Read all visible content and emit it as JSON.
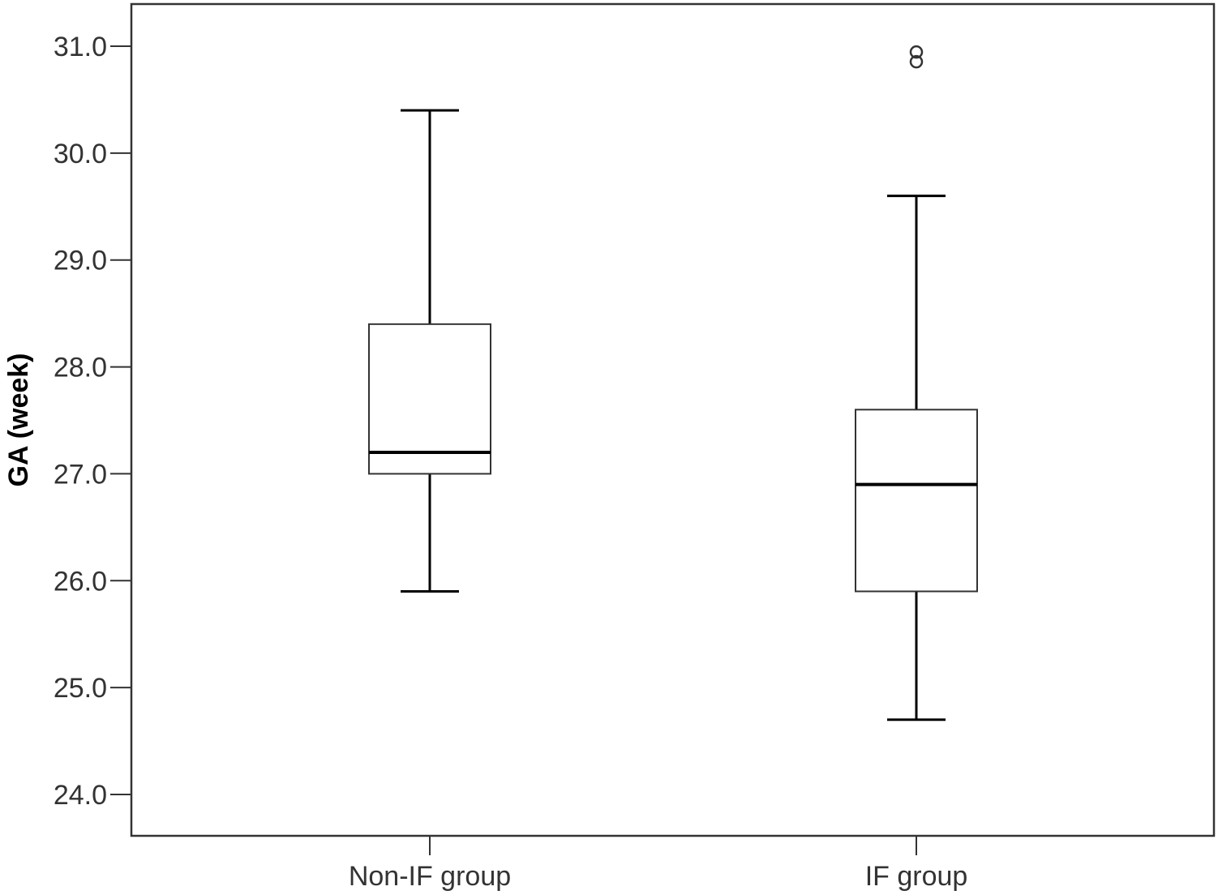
{
  "chart_data": {
    "type": "boxplot",
    "ylabel": "GA (week)",
    "xlabel": "",
    "ylim": [
      23.6,
      31.4
    ],
    "yticks": [
      "24.0",
      "25.0",
      "26.0",
      "27.0",
      "28.0",
      "29.0",
      "30.0",
      "31.0"
    ],
    "categories": [
      "Non-IF group",
      "IF group"
    ],
    "boxes": [
      {
        "category": "Non-IF group",
        "whisker_low": 25.9,
        "q1": 27.0,
        "median": 27.2,
        "q3": 28.4,
        "whisker_high": 30.4,
        "outliers": []
      },
      {
        "category": "IF group",
        "whisker_low": 24.7,
        "q1": 25.9,
        "median": 26.9,
        "q3": 27.6,
        "whisker_high": 29.6,
        "outliers": [
          30.9,
          30.9
        ]
      }
    ],
    "colors": {
      "box_fill": "#ffffff",
      "stroke": "#000000",
      "text": "#333333"
    }
  }
}
